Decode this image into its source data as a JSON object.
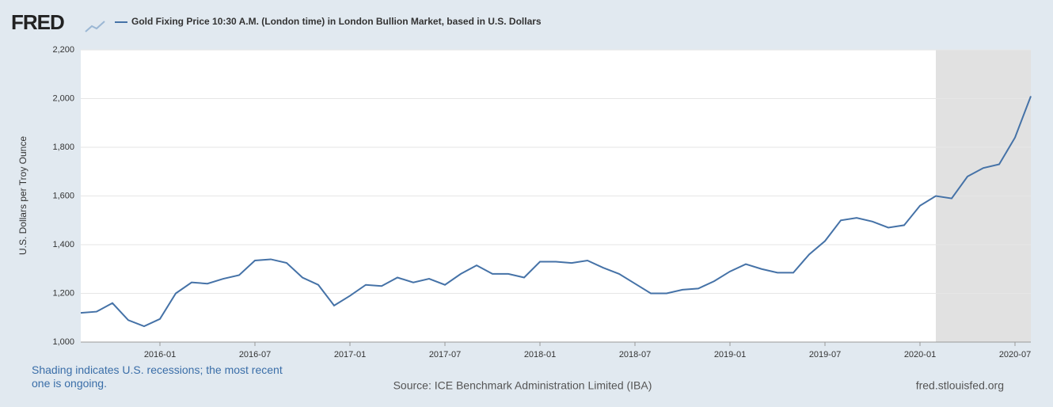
{
  "logo": "FRED",
  "chart_data": {
    "type": "line",
    "title": "Gold Fixing Price 10:30 A.M. (London time) in London Bullion Market, based in U.S. Dollars",
    "y_label": "U.S. Dollars per Troy Ounce",
    "x": [
      "2015-08",
      "2015-09",
      "2015-10",
      "2015-11",
      "2015-12",
      "2016-01",
      "2016-02",
      "2016-03",
      "2016-04",
      "2016-05",
      "2016-06",
      "2016-07",
      "2016-08",
      "2016-09",
      "2016-10",
      "2016-11",
      "2016-12",
      "2017-01",
      "2017-02",
      "2017-03",
      "2017-04",
      "2017-05",
      "2017-06",
      "2017-07",
      "2017-08",
      "2017-09",
      "2017-10",
      "2017-11",
      "2017-12",
      "2018-01",
      "2018-02",
      "2018-03",
      "2018-04",
      "2018-05",
      "2018-06",
      "2018-07",
      "2018-08",
      "2018-09",
      "2018-10",
      "2018-11",
      "2018-12",
      "2019-01",
      "2019-02",
      "2019-03",
      "2019-04",
      "2019-05",
      "2019-06",
      "2019-07",
      "2019-08",
      "2019-09",
      "2019-10",
      "2019-11",
      "2019-12",
      "2020-01",
      "2020-02",
      "2020-03",
      "2020-04",
      "2020-05",
      "2020-06",
      "2020-07",
      "2020-08"
    ],
    "series": [
      {
        "name": "Gold Fixing Price 10:30 A.M. (London time) in London Bullion Market, based in U.S. Dollars",
        "color": "#4572a7",
        "values": [
          1120,
          1125,
          1160,
          1090,
          1065,
          1095,
          1200,
          1245,
          1240,
          1260,
          1275,
          1335,
          1340,
          1325,
          1265,
          1235,
          1150,
          1190,
          1235,
          1230,
          1265,
          1245,
          1260,
          1235,
          1280,
          1315,
          1280,
          1280,
          1265,
          1330,
          1330,
          1325,
          1335,
          1305,
          1280,
          1240,
          1200,
          1200,
          1215,
          1220,
          1250,
          1290,
          1320,
          1300,
          1285,
          1285,
          1360,
          1415,
          1500,
          1510,
          1495,
          1470,
          1480,
          1560,
          1600,
          1590,
          1680,
          1715,
          1730,
          1840,
          2010
        ]
      }
    ],
    "xlim": [
      "2015-08",
      "2020-08"
    ],
    "xticks": [
      "2016-01",
      "2016-07",
      "2017-01",
      "2017-07",
      "2018-01",
      "2018-07",
      "2019-01",
      "2019-07",
      "2020-01",
      "2020-07"
    ],
    "ylim": [
      1000,
      2200
    ],
    "yticks": [
      {
        "value": 1000,
        "label": "1,000"
      },
      {
        "value": 1200,
        "label": "1,200"
      },
      {
        "value": 1400,
        "label": "1,400"
      },
      {
        "value": 1600,
        "label": "1,600"
      },
      {
        "value": 1800,
        "label": "1,800"
      },
      {
        "value": 2000,
        "label": "2,000"
      },
      {
        "value": 2200,
        "label": "2,200"
      }
    ],
    "grid": true,
    "recessions": [
      {
        "start": "2020-02",
        "end": "2020-08"
      }
    ],
    "recession_color": "#e1e1e1",
    "recession_note": "Shading indicates U.S. recessions; the most recent one is ongoing.",
    "source": "Source: ICE Benchmark Administration Limited (IBA)",
    "site": "fred.stlouisfed.org"
  }
}
